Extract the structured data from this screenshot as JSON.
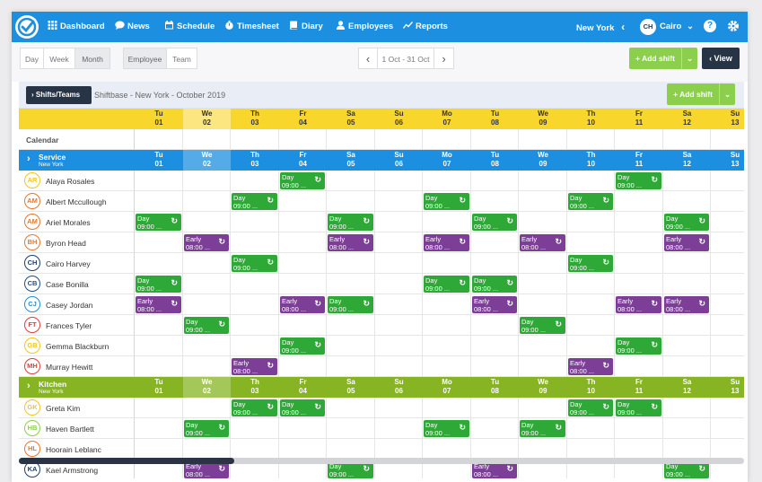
{
  "nav": {
    "items": [
      {
        "key": "dashboard",
        "label": "Dashboard",
        "icon": "grid-icon"
      },
      {
        "key": "news",
        "label": "News",
        "icon": "chat-bubble-icon"
      },
      {
        "key": "schedule",
        "label": "Schedule",
        "icon": "calendar-icon"
      },
      {
        "key": "timesheet",
        "label": "Timesheet",
        "icon": "stopwatch-icon"
      },
      {
        "key": "diary",
        "label": "Diary",
        "icon": "book-icon"
      },
      {
        "key": "employees",
        "label": "Employees",
        "icon": "person-icon"
      },
      {
        "key": "reports",
        "label": "Reports",
        "icon": "line-chart-icon"
      }
    ],
    "location": "New York",
    "location_chevron": "‹",
    "user_initials": "CH",
    "user_name": "Cairo",
    "user_chevron": "⌄",
    "help": "?",
    "settings_icon": "gear-icon"
  },
  "toolbar": {
    "view_modes": [
      "Day",
      "Week",
      "Month"
    ],
    "group_modes": [
      "Employee",
      "Team"
    ],
    "date_range": "1 Oct - 31 Oct",
    "prev": "‹",
    "next": "›",
    "add_shift": "+ Add shift",
    "view_label": "‹ View",
    "dropdown": "⌄"
  },
  "schedule": {
    "teams_button": "›  Shifts/Teams",
    "title": "Shiftbase - New York - October 2019",
    "add_shift": "+ Add shift",
    "calendar_label": "Calendar",
    "days": [
      {
        "d": "Tu",
        "n": "01"
      },
      {
        "d": "We",
        "n": "02"
      },
      {
        "d": "Th",
        "n": "03"
      },
      {
        "d": "Fr",
        "n": "04"
      },
      {
        "d": "Sa",
        "n": "05"
      },
      {
        "d": "Su",
        "n": "06"
      },
      {
        "d": "Mo",
        "n": "07"
      },
      {
        "d": "Tu",
        "n": "08"
      },
      {
        "d": "We",
        "n": "09"
      },
      {
        "d": "Th",
        "n": "10"
      },
      {
        "d": "Fr",
        "n": "11"
      },
      {
        "d": "Sa",
        "n": "12"
      },
      {
        "d": "Su",
        "n": "13"
      }
    ],
    "today_index": 1,
    "shift_types": {
      "day": {
        "label": "Day",
        "time": "09:00 ...",
        "color": "#2ea836"
      },
      "early": {
        "label": "Early",
        "time": "08:00 ...",
        "color": "#7d3e98"
      }
    },
    "groups": [
      {
        "name": "Service",
        "location": "New York",
        "color": "#1d8fe0",
        "employees": [
          {
            "initials": "AR",
            "name": "Alaya Rosales",
            "color": "#f5c518",
            "shifts": {
              "3": "day",
              "10": "day"
            }
          },
          {
            "initials": "AM",
            "name": "Albert Mccullough",
            "color": "#e8762c",
            "shifts": {
              "2": "day",
              "6": "day",
              "9": "day"
            }
          },
          {
            "initials": "AM",
            "name": "Ariel Morales",
            "color": "#e8762c",
            "shifts": {
              "0": "day",
              "4": "day",
              "7": "day",
              "11": "day"
            }
          },
          {
            "initials": "BH",
            "name": "Byron Head",
            "color": "#e8762c",
            "shifts": {
              "1": "early",
              "4": "early",
              "6": "early",
              "8": "early",
              "11": "early"
            }
          },
          {
            "initials": "CH",
            "name": "Cairo Harvey",
            "color": "#1d3f6b",
            "shifts": {
              "2": "day",
              "9": "day"
            }
          },
          {
            "initials": "CB",
            "name": "Case Bonilla",
            "color": "#1d4e8f",
            "shifts": {
              "0": "day",
              "6": "day",
              "7": "day"
            }
          },
          {
            "initials": "CJ",
            "name": "Casey Jordan",
            "color": "#1d8fe0",
            "shifts": {
              "0": "early",
              "3": "early",
              "4": "day",
              "7": "early",
              "10": "early",
              "11": "early"
            }
          },
          {
            "initials": "FT",
            "name": "Frances Tyler",
            "color": "#e23b3b",
            "shifts": {
              "1": "day",
              "8": "day"
            }
          },
          {
            "initials": "GB",
            "name": "Gemma Blackburn",
            "color": "#f5c518",
            "shifts": {
              "3": "day",
              "10": "day"
            }
          },
          {
            "initials": "MH",
            "name": "Murray Hewitt",
            "color": "#e23b3b",
            "shifts": {
              "2": "early",
              "9": "early"
            }
          }
        ]
      },
      {
        "name": "Kitchen",
        "location": "New York",
        "color": "#86b423",
        "employees": [
          {
            "initials": "GK",
            "name": "Greta Kim",
            "color": "#f5c518",
            "shifts": {
              "2": "day",
              "3": "day",
              "9": "day",
              "10": "day"
            }
          },
          {
            "initials": "HB",
            "name": "Haven Bartlett",
            "color": "#8ccf4d",
            "shifts": {
              "1": "day",
              "6": "day",
              "8": "day"
            }
          },
          {
            "initials": "HL",
            "name": "Hoorain Leblanc",
            "color": "#e8762c",
            "shifts": {}
          },
          {
            "initials": "KA",
            "name": "Kael Armstrong",
            "color": "#1d3f6b",
            "shifts": {
              "1": "early",
              "4": "day",
              "7": "early",
              "11": "day"
            }
          }
        ]
      }
    ]
  }
}
